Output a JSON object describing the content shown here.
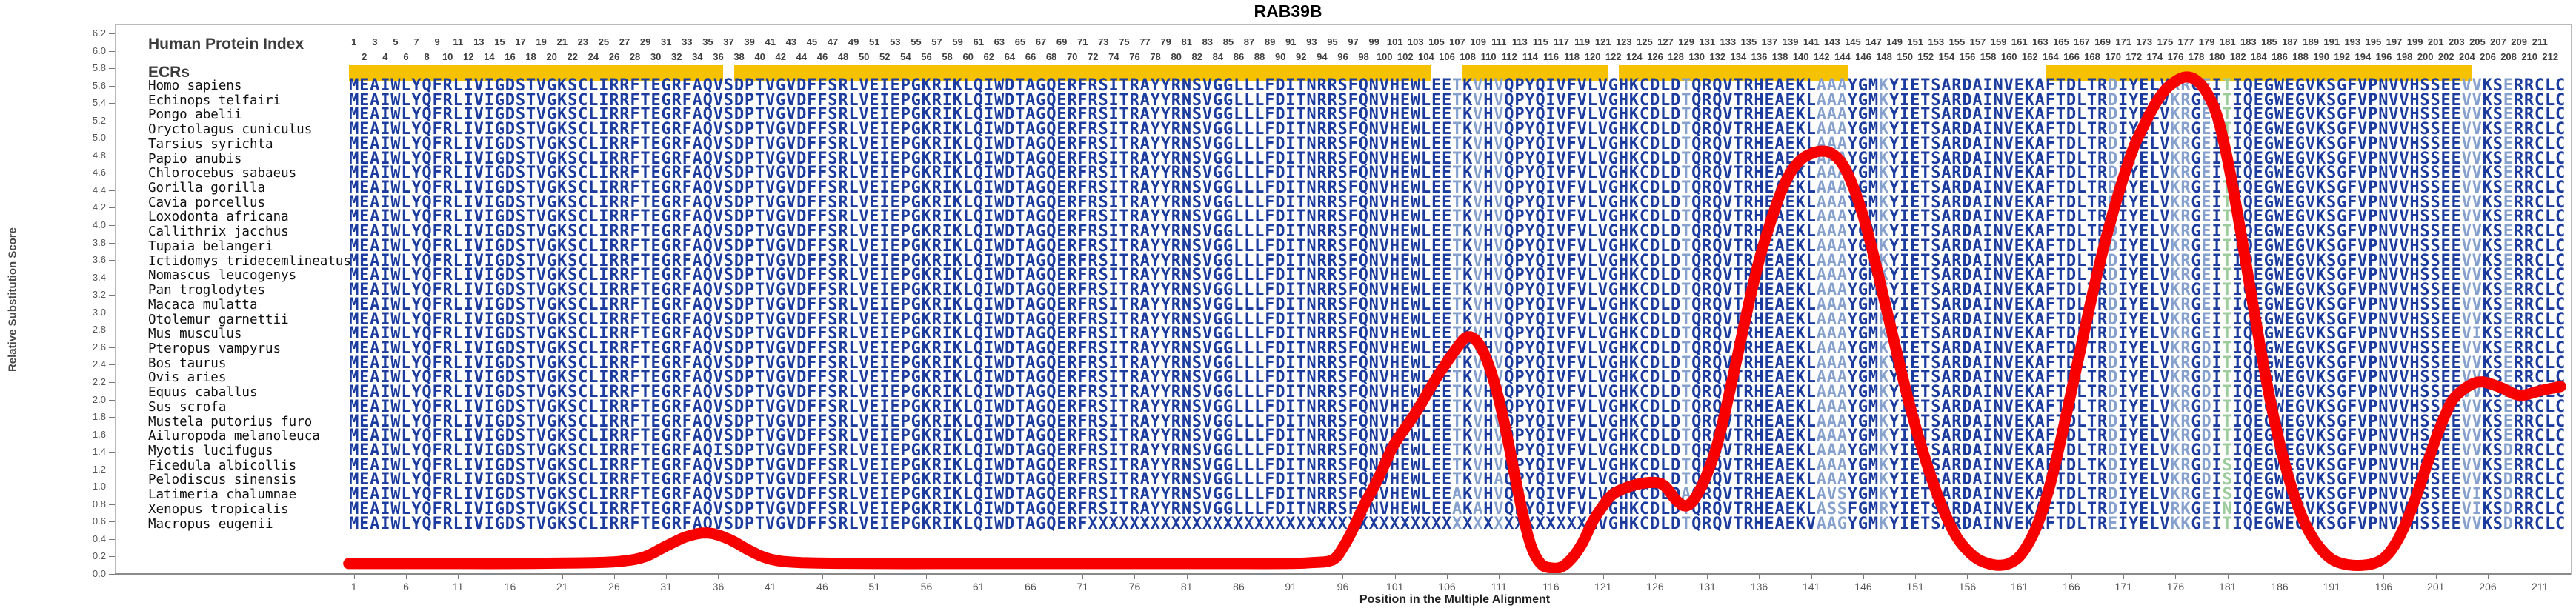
{
  "title": "RAB39B",
  "left_panel": {
    "header1": "Human Protein Index",
    "header2": "ECRs",
    "species": [
      "Homo sapiens",
      "Echinops telfairi",
      "Pongo abelii",
      "Oryctolagus cuniculus",
      "Tarsius syrichta",
      "Papio anubis",
      "Chlorocebus sabaeus",
      "Gorilla gorilla",
      "Cavia porcellus",
      "Loxodonta africana",
      "Callithrix jacchus",
      "Tupaia belangeri",
      "Ictidomys tridecemlineatus",
      "Nomascus leucogenys",
      "Pan troglodytes",
      "Macaca mulatta",
      "Otolemur garnettii",
      "Mus musculus",
      "Pteropus vampyrus",
      "Bos taurus",
      "Ovis aries",
      "Equus caballus",
      "Sus scrofa",
      "Mustela putorius furo",
      "Ailuropoda melanoleuca",
      "Myotis lucifugus",
      "Ficedula albicollis",
      "Pelodiscus sinensis",
      "Latimeria chalumnae",
      "Xenopus tropicalis",
      "Macropus eugenii"
    ]
  },
  "alignment": {
    "length": 213,
    "numbered_to": 212,
    "base_sequence": "MEAIWLYQFRLIVIGDSTVGKSCLIRRFTEGRFAQVSDPTVGVDFFSRLVEIEPGKRIKLQIWDTAGQERFRSITRAYYRNSVGGLLLFDITNRRSFQNVHEWLEETKVHVQPYQIVFVLVGHKCDLDTQRQVTRHEAEKLAAAYGMKYIETSARDAINVEKAFTDLTRDIYELVKRGEITIQEGWEGVKSGFVPNVVHSSEEVVKSERRCLC",
    "light_columns": [
      107,
      109,
      111,
      129,
      142,
      143,
      144,
      148,
      170,
      176,
      177,
      179,
      204,
      205,
      208
    ],
    "green_columns": [
      181
    ],
    "variants": {
      "17": {
        "205": "I"
      },
      "18": {
        "179": "D"
      },
      "19": {
        "179": "D"
      },
      "20": {
        "179": "D"
      },
      "21": {
        "179": "D"
      },
      "22": {
        "179": "D"
      },
      "23": {
        "179": "D"
      },
      "24": {
        "179": "D"
      },
      "25": {
        "36": "I",
        "179": "D",
        "208": "D"
      },
      "26": {
        "169": "K",
        "179": "D",
        "181": "S"
      },
      "27": {
        "111": "A",
        "179": "D",
        "181": "S",
        "208": "D"
      },
      "28": {
        "107": "A",
        "129": "A",
        "143": "V",
        "144": "S",
        "181": "S",
        "205": "I",
        "208": "D"
      },
      "29": {
        "107": "A",
        "109": "A",
        "143": "S",
        "144": "S",
        "145": "F",
        "148": "R",
        "176": "R",
        "177": "K",
        "181": "N",
        "205": "I",
        "208": "D"
      },
      "30": {
        "141": "V",
        "144": "G",
        "170": "E",
        "177": "K",
        "208": "D"
      }
    },
    "x_run": {
      "species_index": 30,
      "from": 72,
      "to": 119
    },
    "ecr_segments": [
      [
        1,
        36
      ],
      [
        38,
        104
      ],
      [
        108,
        121
      ],
      [
        123,
        144
      ],
      [
        164,
        204
      ]
    ]
  },
  "chart_data": {
    "type": "line",
    "title": "RAB39B",
    "xlabel": "Position in the Multiple Alignment",
    "ylabel": "Relative Substitution Score",
    "xlim": [
      1,
      213
    ],
    "ylim": [
      0.0,
      6.2
    ],
    "y_tick_step": 0.2,
    "x_tick_start": 1,
    "x_tick_step": 5,
    "x_tick_end": 211,
    "grid": false,
    "legend": "none",
    "series": [
      {
        "name": "relative substitution score",
        "color": "#f80000",
        "points": [
          [
            1,
            0.12
          ],
          [
            8,
            0.12
          ],
          [
            16,
            0.12
          ],
          [
            24,
            0.13
          ],
          [
            27,
            0.15
          ],
          [
            29,
            0.2
          ],
          [
            31,
            0.32
          ],
          [
            33,
            0.43
          ],
          [
            35,
            0.47
          ],
          [
            37,
            0.4
          ],
          [
            39,
            0.27
          ],
          [
            41,
            0.17
          ],
          [
            44,
            0.13
          ],
          [
            52,
            0.12
          ],
          [
            62,
            0.12
          ],
          [
            72,
            0.12
          ],
          [
            82,
            0.12
          ],
          [
            90,
            0.12
          ],
          [
            93,
            0.13
          ],
          [
            95,
            0.16
          ],
          [
            96,
            0.3
          ],
          [
            97,
            0.52
          ],
          [
            98,
            0.78
          ],
          [
            99,
            1.0
          ],
          [
            100,
            1.25
          ],
          [
            101,
            1.5
          ],
          [
            103,
            1.85
          ],
          [
            105,
            2.25
          ],
          [
            107,
            2.6
          ],
          [
            108,
            2.72
          ],
          [
            109,
            2.65
          ],
          [
            110,
            2.4
          ],
          [
            111,
            2.0
          ],
          [
            112,
            1.45
          ],
          [
            113,
            0.85
          ],
          [
            114,
            0.35
          ],
          [
            115,
            0.12
          ],
          [
            116,
            0.07
          ],
          [
            117,
            0.08
          ],
          [
            118,
            0.18
          ],
          [
            119,
            0.35
          ],
          [
            120,
            0.6
          ],
          [
            121,
            0.78
          ],
          [
            122,
            0.92
          ],
          [
            124,
            1.02
          ],
          [
            126,
            1.05
          ],
          [
            127,
            1.0
          ],
          [
            128,
            0.85
          ],
          [
            129,
            0.78
          ],
          [
            130,
            0.9
          ],
          [
            131,
            1.15
          ],
          [
            132,
            1.5
          ],
          [
            133,
            2.0
          ],
          [
            134,
            2.55
          ],
          [
            135,
            3.1
          ],
          [
            136,
            3.6
          ],
          [
            137,
            4.0
          ],
          [
            138,
            4.35
          ],
          [
            139,
            4.6
          ],
          [
            140,
            4.75
          ],
          [
            141,
            4.82
          ],
          [
            142,
            4.85
          ],
          [
            143,
            4.82
          ],
          [
            144,
            4.7
          ],
          [
            145,
            4.45
          ],
          [
            146,
            4.1
          ],
          [
            147,
            3.65
          ],
          [
            148,
            3.15
          ],
          [
            149,
            2.65
          ],
          [
            150,
            2.15
          ],
          [
            151,
            1.7
          ],
          [
            152,
            1.3
          ],
          [
            153,
            0.95
          ],
          [
            154,
            0.65
          ],
          [
            155,
            0.42
          ],
          [
            156,
            0.27
          ],
          [
            157,
            0.17
          ],
          [
            158,
            0.12
          ],
          [
            159,
            0.1
          ],
          [
            160,
            0.12
          ],
          [
            161,
            0.2
          ],
          [
            162,
            0.38
          ],
          [
            163,
            0.65
          ],
          [
            164,
            1.05
          ],
          [
            165,
            1.55
          ],
          [
            166,
            2.1
          ],
          [
            167,
            2.65
          ],
          [
            168,
            3.2
          ],
          [
            169,
            3.7
          ],
          [
            170,
            4.15
          ],
          [
            171,
            4.55
          ],
          [
            172,
            4.9
          ],
          [
            173,
            5.15
          ],
          [
            174,
            5.38
          ],
          [
            175,
            5.55
          ],
          [
            176,
            5.65
          ],
          [
            177,
            5.7
          ],
          [
            178,
            5.66
          ],
          [
            179,
            5.52
          ],
          [
            180,
            5.25
          ],
          [
            181,
            4.75
          ],
          [
            182,
            4.1
          ],
          [
            183,
            3.4
          ],
          [
            184,
            2.7
          ],
          [
            185,
            2.05
          ],
          [
            186,
            1.5
          ],
          [
            187,
            1.05
          ],
          [
            188,
            0.7
          ],
          [
            189,
            0.45
          ],
          [
            190,
            0.28
          ],
          [
            191,
            0.17
          ],
          [
            192,
            0.12
          ],
          [
            193,
            0.1
          ],
          [
            194,
            0.1
          ],
          [
            195,
            0.12
          ],
          [
            196,
            0.18
          ],
          [
            197,
            0.32
          ],
          [
            198,
            0.55
          ],
          [
            199,
            0.85
          ],
          [
            200,
            1.2
          ],
          [
            201,
            1.55
          ],
          [
            202,
            1.85
          ],
          [
            203,
            2.05
          ],
          [
            205,
            2.2
          ],
          [
            207,
            2.15
          ],
          [
            209,
            2.05
          ],
          [
            211,
            2.1
          ],
          [
            213,
            2.15
          ]
        ]
      }
    ]
  },
  "colors": {
    "sequence_dark": "#1b3b9e",
    "sequence_light": "#85a0cc",
    "sequence_green": "#9ccb9c",
    "ecr_yellow": "#f6c200",
    "curve_red": "#f80000",
    "number_gray": "#3f3f3f",
    "tick_gray": "#555555"
  },
  "x_axis": {
    "label": "Position in the Multiple Alignment"
  },
  "y_axis": {
    "label": "Relative Substitution Score"
  }
}
